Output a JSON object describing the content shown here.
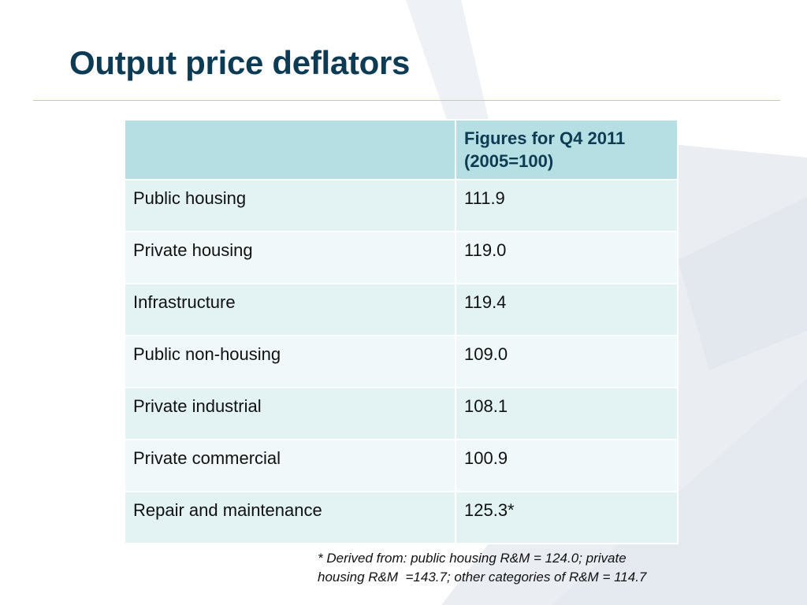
{
  "slide": {
    "title": "Output price deflators"
  },
  "table": {
    "header": {
      "label": "",
      "value_line1": "Figures for Q4 2011",
      "value_line2": "(2005=100)"
    },
    "rows": [
      {
        "label": "Public housing",
        "value": "111.9"
      },
      {
        "label": "Private housing",
        "value": "119.0"
      },
      {
        "label": "Infrastructure",
        "value": "119.4"
      },
      {
        "label": "Public non-housing",
        "value": "109.0"
      },
      {
        "label": "Private industrial",
        "value": "108.1"
      },
      {
        "label": "Private commercial",
        "value": "100.9"
      },
      {
        "label": "Repair and maintenance",
        "value": "125.3*"
      }
    ]
  },
  "footnote": {
    "line1": "* Derived from: public housing R&M = 124.0; private",
    "line2": "housing R&M  =143.7; other categories of R&M = 114.7"
  },
  "colors": {
    "title": "#0e3b54",
    "divider": "#c6cf8e",
    "header_fill": "#b5dfe2",
    "row_fill_a": "#e3f2f3",
    "row_fill_b": "#f1f8f9",
    "background_shape": "#eaeef3"
  }
}
